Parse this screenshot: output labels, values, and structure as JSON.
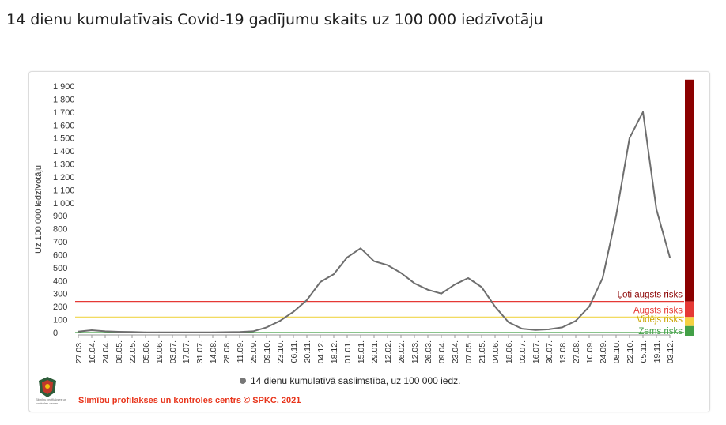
{
  "page": {
    "title": "14 dienu kumulatīvais Covid-19 gadījumu skaits uz 100 000 iedzīvotāju"
  },
  "legend": {
    "label": "14 dienu kumulatīvā saslimstība, uz 100 000 iedz."
  },
  "footer": {
    "credit": "Slimību profilakses un kontroles centrs © SPKC, 2021",
    "logo_caption": "Slimību profilakses un kontroles centrs"
  },
  "chart_data": {
    "type": "line",
    "title": "",
    "ylabel": "Uz 100 000 iedzīvotāju",
    "xlabel": "",
    "ylim": [
      0,
      1900
    ],
    "yticks": [
      0,
      100,
      200,
      300,
      400,
      500,
      600,
      700,
      800,
      900,
      1000,
      1100,
      1200,
      1300,
      1400,
      1500,
      1600,
      1700,
      1800,
      1900
    ],
    "ytick_labels": [
      "0",
      "100",
      "200",
      "300",
      "400",
      "500",
      "600",
      "700",
      "800",
      "900",
      "1 000",
      "1 100",
      "1 200",
      "1 300",
      "1 400",
      "1 500",
      "1 600",
      "1 700",
      "1 800",
      "1 900"
    ],
    "categories": [
      "27.03.",
      "10.04.",
      "24.04.",
      "08.05.",
      "22.05.",
      "05.06.",
      "19.06.",
      "03.07.",
      "17.07.",
      "31.07.",
      "14.08.",
      "28.08.",
      "11.09.",
      "25.09.",
      "09.10.",
      "23.10.",
      "06.11.",
      "20.11.",
      "04.12.",
      "18.12.",
      "01.01.",
      "15.01.",
      "29.01.",
      "12.02.",
      "26.02.",
      "12.03.",
      "26.03.",
      "09.04.",
      "23.04.",
      "07.05.",
      "21.05.",
      "04.06.",
      "18.06.",
      "02.07.",
      "16.07.",
      "30.07.",
      "13.08.",
      "27.08.",
      "10.09.",
      "24.09.",
      "08.10.",
      "22.10.",
      "05.11.",
      "19.11.",
      "03.12."
    ],
    "grid": false,
    "legend_position": "bottom",
    "series": [
      {
        "name": "14 dienu kumulatīvā saslimstība, uz 100 000 iedz.",
        "color": "#6e6e6e",
        "values": [
          8,
          18,
          10,
          6,
          4,
          2,
          2,
          2,
          1,
          1,
          2,
          3,
          4,
          10,
          40,
          90,
          160,
          250,
          390,
          450,
          580,
          650,
          550,
          520,
          460,
          380,
          330,
          300,
          370,
          420,
          350,
          200,
          80,
          30,
          20,
          25,
          40,
          90,
          200,
          420,
          900,
          1500,
          1700,
          950,
          580
        ]
      }
    ],
    "risk_levels": [
      {
        "label": "Ļoti augsts risks",
        "from": 240,
        "to": 1950,
        "color": "#8b0000"
      },
      {
        "label": "Augsts risks",
        "from": 120,
        "to": 240,
        "color": "#e53935"
      },
      {
        "label": "Vidējs risks",
        "from": 50,
        "to": 120,
        "color": "#f5d142"
      },
      {
        "label": "Zems risks",
        "from": 0,
        "to": 50,
        "color": "#43a047"
      }
    ],
    "risk_lines": [
      {
        "value": 240,
        "color": "#e53935"
      },
      {
        "value": 120,
        "color": "#f0d64a"
      },
      {
        "value": 0,
        "color": "#43a047"
      }
    ]
  }
}
